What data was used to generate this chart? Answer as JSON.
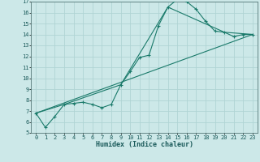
{
  "xlabel": "Humidex (Indice chaleur)",
  "ylabel": "",
  "bg_color": "#cce8e8",
  "grid_color": "#b0d4d4",
  "line_color": "#1a7a6a",
  "xlim": [
    -0.5,
    23.5
  ],
  "ylim": [
    5,
    17
  ],
  "xticks": [
    0,
    1,
    2,
    3,
    4,
    5,
    6,
    7,
    8,
    9,
    10,
    11,
    12,
    13,
    14,
    15,
    16,
    17,
    18,
    19,
    20,
    21,
    22,
    23
  ],
  "yticks": [
    5,
    6,
    7,
    8,
    9,
    10,
    11,
    12,
    13,
    14,
    15,
    16,
    17
  ],
  "line1_x": [
    0,
    1,
    2,
    3,
    4,
    5,
    6,
    7,
    8,
    9,
    10,
    11,
    12,
    13,
    14,
    15,
    16,
    17,
    18,
    19,
    20,
    21,
    22,
    23
  ],
  "line1_y": [
    6.8,
    5.5,
    6.5,
    7.6,
    7.7,
    7.8,
    7.6,
    7.3,
    7.6,
    9.4,
    10.6,
    11.9,
    12.1,
    14.8,
    16.5,
    17.2,
    17.0,
    16.3,
    15.2,
    14.3,
    14.2,
    13.8,
    14.0,
    14.0
  ],
  "line2_x": [
    0,
    3,
    9,
    14,
    20,
    23
  ],
  "line2_y": [
    6.8,
    7.6,
    9.4,
    16.5,
    14.2,
    14.0
  ],
  "line3_x": [
    0,
    23
  ],
  "line3_y": [
    6.8,
    14.0
  ],
  "tick_fontsize": 5.0,
  "xlabel_fontsize": 6.0
}
